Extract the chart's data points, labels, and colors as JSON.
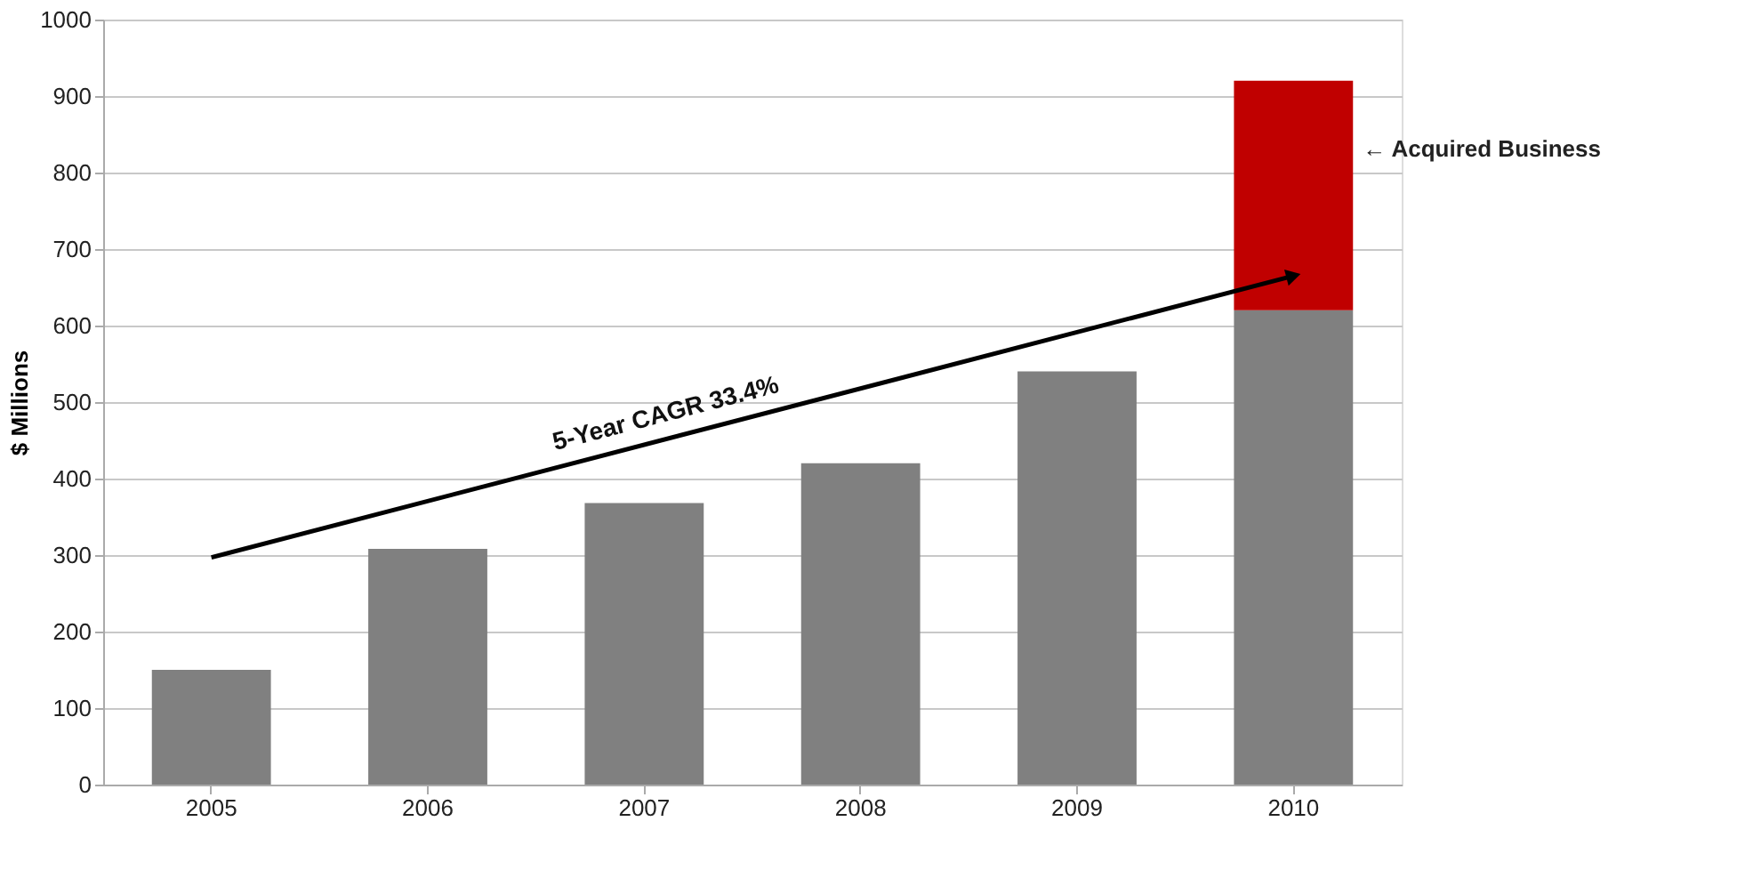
{
  "chart_data": {
    "type": "bar",
    "ylabel": "$ Millions",
    "categories": [
      "2005",
      "2006",
      "2007",
      "2008",
      "2009",
      "2010"
    ],
    "stacked": true,
    "series": [
      {
        "color": "#808080",
        "values": [
          150,
          308,
          368,
          420,
          540,
          620
        ]
      },
      {
        "color": "#c00000",
        "values": [
          null,
          null,
          null,
          null,
          null,
          300
        ]
      },
      {
        "type": "line",
        "color": "#000000",
        "values": [
          297,
          null,
          null,
          null,
          null,
          665
        ]
      }
    ],
    "ylim": [
      0,
      1000
    ],
    "yticks": [
      0,
      100,
      200,
      300,
      400,
      500,
      600,
      700,
      800,
      900,
      1000
    ],
    "grid": "y",
    "annotations": [
      "5-Year CAGR 33.4%",
      "← Acquired Business"
    ]
  }
}
